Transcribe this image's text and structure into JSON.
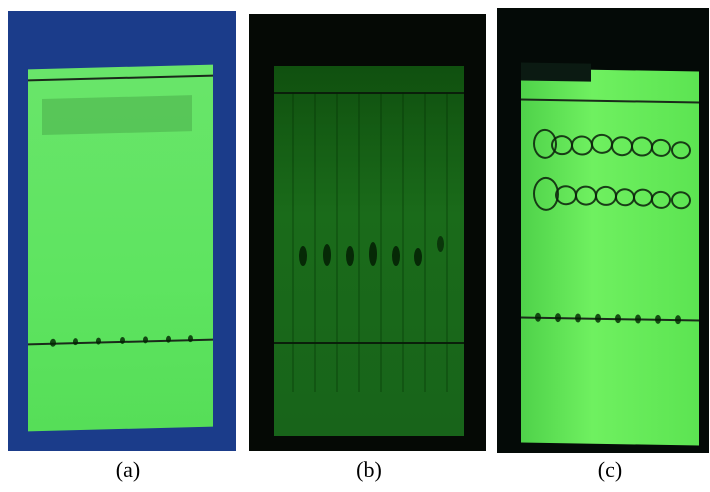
{
  "panels": [
    {
      "id": "a",
      "caption": "(a)"
    },
    {
      "id": "b",
      "caption": "(b)"
    },
    {
      "id": "c",
      "caption": "(c)"
    }
  ],
  "colors": {
    "plate_bright_green": "#5ee460",
    "plate_dark_green": "#18641a",
    "background_blue": "#1b3c8a",
    "background_black": "#050905"
  }
}
